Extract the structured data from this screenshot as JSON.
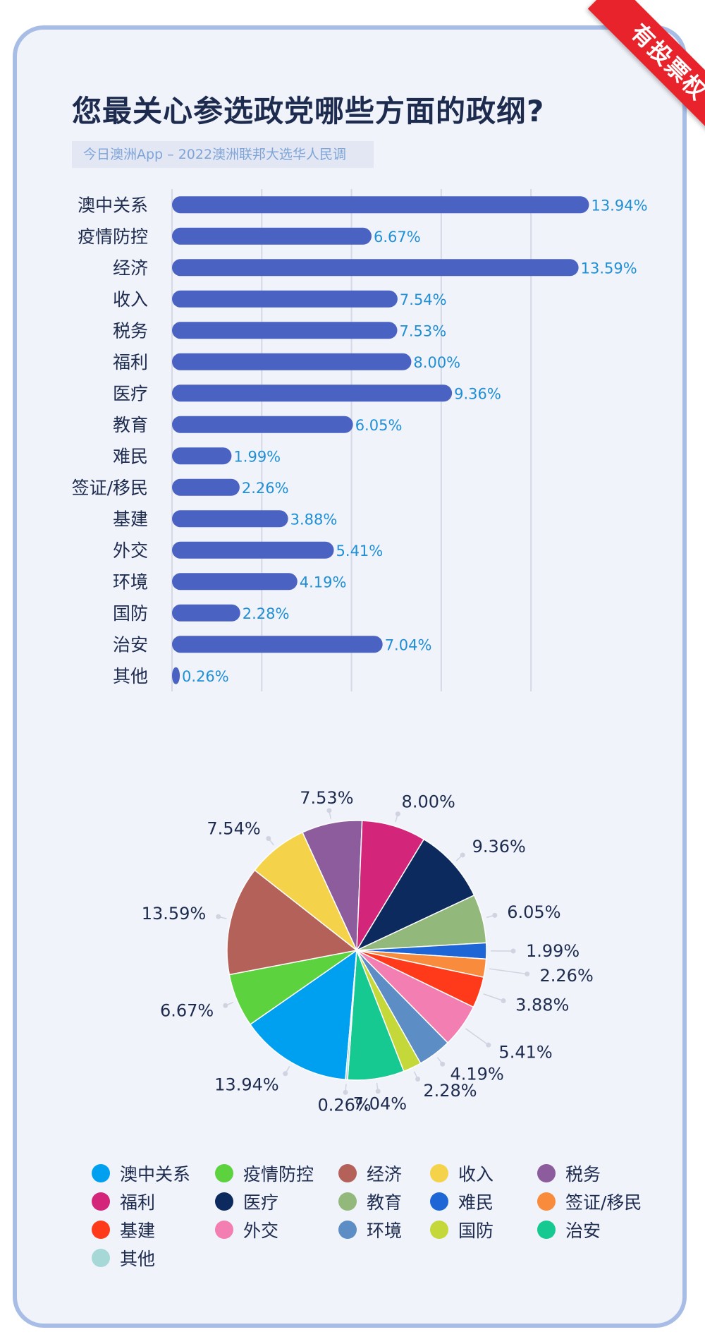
{
  "header": {
    "title": "您最关心参选政党哪些方面的政纲?",
    "subtitle": "今日澳洲App – 2022澳洲联邦大选华人民调",
    "ribbon": "有投票权"
  },
  "chart_data": [
    {
      "type": "bar",
      "orientation": "horizontal",
      "categories": [
        "澳中关系",
        "疫情防控",
        "经济",
        "收入",
        "税务",
        "福利",
        "医疗",
        "教育",
        "难民",
        "签证/移民",
        "基建",
        "外交",
        "环境",
        "国防",
        "治安",
        "其他"
      ],
      "values": [
        13.94,
        6.67,
        13.59,
        7.54,
        7.53,
        8.0,
        9.36,
        6.05,
        1.99,
        2.26,
        3.88,
        5.41,
        4.19,
        2.28,
        7.04,
        0.26
      ],
      "value_labels": [
        "13.94%",
        "6.67%",
        "13.59%",
        "7.54%",
        "7.53%",
        "8.00%",
        "9.36%",
        "6.05%",
        "1.99%",
        "2.26%",
        "3.88%",
        "5.41%",
        "4.19%",
        "2.28%",
        "7.04%",
        "0.26%"
      ],
      "xlim": [
        0,
        14
      ],
      "grid": true,
      "bar_color": "#4a63c3",
      "label_color": "#1f8fd6"
    },
    {
      "type": "pie",
      "categories": [
        "澳中关系",
        "疫情防控",
        "经济",
        "收入",
        "税务",
        "福利",
        "医疗",
        "教育",
        "难民",
        "签证/移民",
        "基建",
        "外交",
        "环境",
        "国防",
        "治安",
        "其他"
      ],
      "values": [
        13.94,
        6.67,
        13.59,
        7.54,
        7.53,
        8.0,
        9.36,
        6.05,
        1.99,
        2.26,
        3.88,
        5.41,
        4.19,
        2.28,
        7.04,
        0.26
      ],
      "value_labels": [
        "13.94%",
        "6.67%",
        "13.59%",
        "7.54%",
        "7.53%",
        "8.00%",
        "9.36%",
        "6.05%",
        "1.99%",
        "2.26%",
        "3.88%",
        "5.41%",
        "4.19%",
        "2.28%",
        "7.04%",
        "0.26%"
      ],
      "colors": [
        "#00a0f0",
        "#5dd23f",
        "#b4615a",
        "#f4d24a",
        "#8c5c9c",
        "#d3257a",
        "#0c2a5e",
        "#93b87c",
        "#1e66d6",
        "#f98b3c",
        "#ff3a1a",
        "#f27eb2",
        "#5c8dc4",
        "#c4d83a",
        "#16c991",
        "#a6d8d8"
      ],
      "legend_position": "bottom"
    }
  ]
}
